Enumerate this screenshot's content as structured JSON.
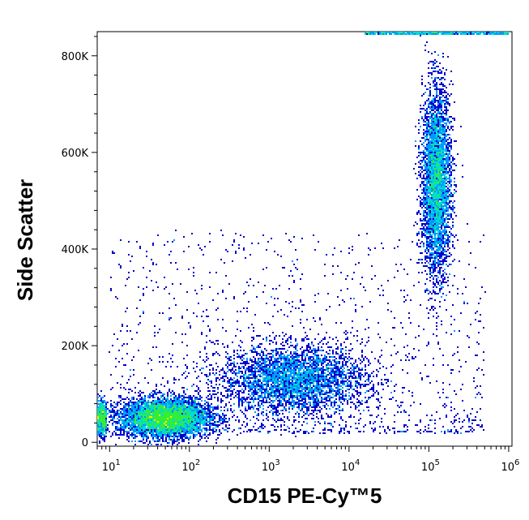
{
  "chart_data": {
    "type": "scatter",
    "subtype": "flow-cytometry-density-dot-plot",
    "xlabel": "CD15 PE-Cy™5",
    "ylabel": "Side Scatter",
    "x_scale": "log",
    "xlim": [
      7,
      1100000
    ],
    "ylim": [
      -8000,
      850000
    ],
    "x_ticks": [
      {
        "value": 10,
        "base": "10",
        "exp": "1"
      },
      {
        "value": 100,
        "base": "10",
        "exp": "2"
      },
      {
        "value": 1000,
        "base": "10",
        "exp": "3"
      },
      {
        "value": 10000,
        "base": "10",
        "exp": "4"
      },
      {
        "value": 100000,
        "base": "10",
        "exp": "5"
      },
      {
        "value": 1000000,
        "base": "10",
        "exp": "6"
      }
    ],
    "y_ticks": [
      {
        "value": 0,
        "label": "0"
      },
      {
        "value": 200000,
        "label": "200K"
      },
      {
        "value": 400000,
        "label": "400K"
      },
      {
        "value": 600000,
        "label": "600K"
      },
      {
        "value": 800000,
        "label": "800K"
      }
    ],
    "color_scale": [
      "#0000cc",
      "#0099ff",
      "#00ddcc",
      "#33ee33",
      "#ffee00",
      "#ff8800",
      "#ee0000"
    ],
    "grid": false,
    "legend": "none",
    "populations": [
      {
        "x_center": 50,
        "y_center": 50000,
        "x_spread_decades": 0.28,
        "y_spread": 20000,
        "events": 5500
      },
      {
        "x_center": 2000,
        "y_center": 130000,
        "x_spread_decades": 0.45,
        "y_spread": 35000,
        "events": 3800
      },
      {
        "x_center": 125000,
        "y_center": 540000,
        "x_spread_decades": 0.09,
        "y_spread": 95000,
        "events": 4200
      }
    ]
  }
}
